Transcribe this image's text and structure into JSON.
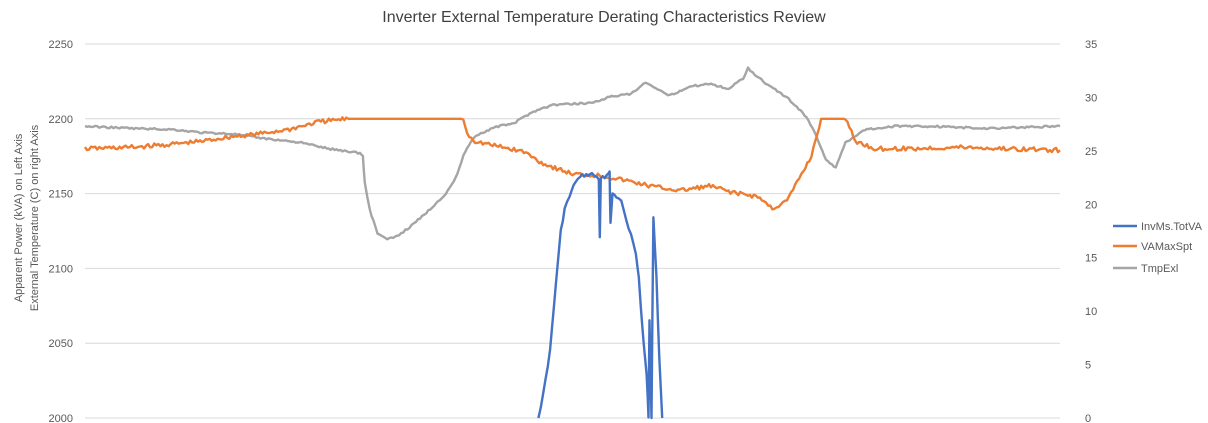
{
  "chart_data": {
    "type": "line",
    "title": "Inverter External Temperature Derating Characteristics Review",
    "ylabel_left_line1": "Apparent Power (kVA) on Left Axis",
    "ylabel_left_line2": "External Temperature (C)  on right Axis",
    "y_left": {
      "min": 2000,
      "max": 2250,
      "ticks": [
        2000,
        2050,
        2100,
        2150,
        2200,
        2250
      ]
    },
    "y_right": {
      "min": 0,
      "max": 35,
      "ticks": [
        0,
        5,
        10,
        15,
        20,
        25,
        30,
        35
      ]
    },
    "grid": true,
    "legend_position": "right",
    "x_normalized_range": [
      0,
      1
    ],
    "series": [
      {
        "name": "InvMs.TotVA",
        "color": "#4472C4",
        "axis": "left",
        "points": [
          [
            0.465,
            2000
          ],
          [
            0.47,
            2016
          ],
          [
            0.477,
            2045
          ],
          [
            0.483,
            2090
          ],
          [
            0.488,
            2125
          ],
          [
            0.492,
            2140
          ],
          [
            0.497,
            2148
          ],
          [
            0.503,
            2158
          ],
          [
            0.51,
            2162
          ],
          [
            0.52,
            2163
          ],
          [
            0.527,
            2160
          ],
          [
            0.528,
            2120
          ],
          [
            0.529,
            2160
          ],
          [
            0.535,
            2162
          ],
          [
            0.538,
            2165
          ],
          [
            0.539,
            2130
          ],
          [
            0.541,
            2150
          ],
          [
            0.545,
            2148
          ],
          [
            0.55,
            2145
          ],
          [
            0.555,
            2132
          ],
          [
            0.56,
            2122
          ],
          [
            0.565,
            2110
          ],
          [
            0.568,
            2095
          ],
          [
            0.57,
            2075
          ],
          [
            0.573,
            2050
          ],
          [
            0.576,
            2030
          ],
          [
            0.578,
            2000
          ],
          [
            0.579,
            2065
          ],
          [
            0.581,
            2000
          ],
          [
            0.583,
            2135
          ],
          [
            0.586,
            2095
          ],
          [
            0.589,
            2040
          ],
          [
            0.592,
            2000
          ]
        ]
      },
      {
        "name": "VAMaxSpt",
        "color": "#ED7D31",
        "axis": "left",
        "points": [
          [
            0.0,
            2180
          ],
          [
            0.05,
            2181
          ],
          [
            0.09,
            2183
          ],
          [
            0.12,
            2185
          ],
          [
            0.15,
            2188
          ],
          [
            0.18,
            2190
          ],
          [
            0.21,
            2193
          ],
          [
            0.24,
            2198
          ],
          [
            0.27,
            2200
          ],
          [
            0.3,
            2200
          ],
          [
            0.35,
            2200
          ],
          [
            0.388,
            2200
          ],
          [
            0.392,
            2190
          ],
          [
            0.4,
            2185
          ],
          [
            0.42,
            2182
          ],
          [
            0.45,
            2178
          ],
          [
            0.47,
            2170
          ],
          [
            0.5,
            2163
          ],
          [
            0.53,
            2162
          ],
          [
            0.56,
            2158
          ],
          [
            0.58,
            2155
          ],
          [
            0.61,
            2152
          ],
          [
            0.64,
            2155
          ],
          [
            0.67,
            2150
          ],
          [
            0.69,
            2148
          ],
          [
            0.705,
            2140
          ],
          [
            0.72,
            2145
          ],
          [
            0.745,
            2175
          ],
          [
            0.755,
            2200
          ],
          [
            0.78,
            2200
          ],
          [
            0.79,
            2185
          ],
          [
            0.81,
            2180
          ],
          [
            0.85,
            2180
          ],
          [
            0.9,
            2181
          ],
          [
            0.94,
            2180
          ],
          [
            1.0,
            2179
          ]
        ]
      },
      {
        "name": "TmpExl",
        "color": "#A5A5A5",
        "axis": "right",
        "points": [
          [
            0.0,
            27.3
          ],
          [
            0.05,
            27.1
          ],
          [
            0.09,
            27.0
          ],
          [
            0.12,
            26.7
          ],
          [
            0.15,
            26.6
          ],
          [
            0.18,
            26.2
          ],
          [
            0.22,
            25.8
          ],
          [
            0.25,
            25.2
          ],
          [
            0.282,
            24.8
          ],
          [
            0.285,
            24.5
          ],
          [
            0.287,
            22.0
          ],
          [
            0.292,
            19.5
          ],
          [
            0.3,
            17.3
          ],
          [
            0.31,
            16.7
          ],
          [
            0.32,
            17.0
          ],
          [
            0.335,
            18.0
          ],
          [
            0.35,
            19.2
          ],
          [
            0.37,
            21.0
          ],
          [
            0.38,
            22.4
          ],
          [
            0.39,
            25.0
          ],
          [
            0.4,
            26.4
          ],
          [
            0.42,
            27.2
          ],
          [
            0.44,
            27.6
          ],
          [
            0.46,
            28.7
          ],
          [
            0.48,
            29.3
          ],
          [
            0.5,
            29.4
          ],
          [
            0.52,
            29.5
          ],
          [
            0.54,
            30.1
          ],
          [
            0.56,
            30.3
          ],
          [
            0.575,
            31.4
          ],
          [
            0.585,
            30.8
          ],
          [
            0.6,
            30.2
          ],
          [
            0.62,
            31.0
          ],
          [
            0.64,
            31.3
          ],
          [
            0.66,
            30.8
          ],
          [
            0.675,
            31.8
          ],
          [
            0.68,
            32.8
          ],
          [
            0.685,
            32.3
          ],
          [
            0.7,
            31.2
          ],
          [
            0.72,
            30.0
          ],
          [
            0.74,
            28.2
          ],
          [
            0.75,
            26.4
          ],
          [
            0.76,
            24.2
          ],
          [
            0.77,
            23.4
          ],
          [
            0.78,
            25.8
          ],
          [
            0.8,
            27.0
          ],
          [
            0.83,
            27.3
          ],
          [
            0.87,
            27.3
          ],
          [
            0.92,
            27.1
          ],
          [
            0.96,
            27.2
          ],
          [
            1.0,
            27.3
          ]
        ]
      }
    ]
  }
}
